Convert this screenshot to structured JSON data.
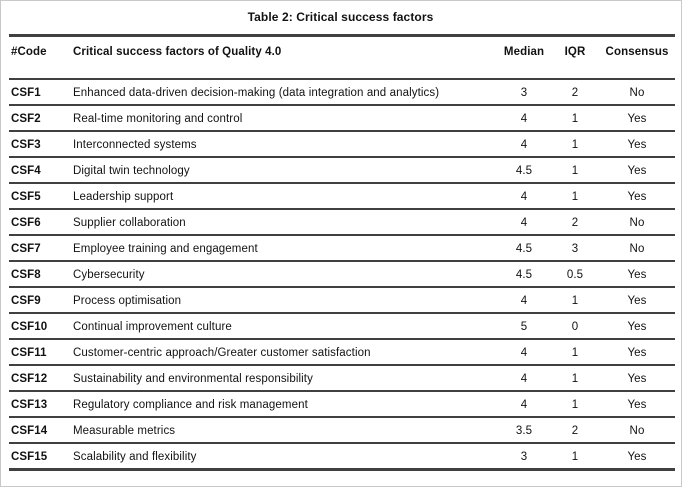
{
  "title": "Table 2: Critical success factors",
  "table": {
    "columns": [
      "#Code",
      "Critical success factors of Quality 4.0",
      "Median",
      "IQR",
      "Consensus"
    ],
    "rows": [
      {
        "code": "CSF1",
        "factor": "Enhanced data-driven decision-making (data integration and analytics)",
        "median": "3",
        "iqr": "2",
        "consensus": "No"
      },
      {
        "code": "CSF2",
        "factor": "Real-time monitoring and control",
        "median": "4",
        "iqr": "1",
        "consensus": "Yes"
      },
      {
        "code": "CSF3",
        "factor": "Interconnected systems",
        "median": "4",
        "iqr": "1",
        "consensus": "Yes"
      },
      {
        "code": "CSF4",
        "factor": "Digital twin technology",
        "median": "4.5",
        "iqr": "1",
        "consensus": "Yes"
      },
      {
        "code": "CSF5",
        "factor": "Leadership support",
        "median": "4",
        "iqr": "1",
        "consensus": "Yes"
      },
      {
        "code": "CSF6",
        "factor": "Supplier collaboration",
        "median": "4",
        "iqr": "2",
        "consensus": "No"
      },
      {
        "code": "CSF7",
        "factor": "Employee training and engagement",
        "median": "4.5",
        "iqr": "3",
        "consensus": "No"
      },
      {
        "code": "CSF8",
        "factor": "Cybersecurity",
        "median": "4.5",
        "iqr": "0.5",
        "consensus": "Yes"
      },
      {
        "code": "CSF9",
        "factor": "Process optimisation",
        "median": "4",
        "iqr": "1",
        "consensus": "Yes"
      },
      {
        "code": "CSF10",
        "factor": "Continual improvement culture",
        "median": "5",
        "iqr": "0",
        "consensus": "Yes"
      },
      {
        "code": "CSF11",
        "factor": "Customer-centric approach/Greater customer satisfaction",
        "median": "4",
        "iqr": "1",
        "consensus": "Yes"
      },
      {
        "code": "CSF12",
        "factor": "Sustainability and environmental responsibility",
        "median": "4",
        "iqr": "1",
        "consensus": "Yes"
      },
      {
        "code": "CSF13",
        "factor": "Regulatory compliance and risk management",
        "median": "4",
        "iqr": "1",
        "consensus": "Yes"
      },
      {
        "code": "CSF14",
        "factor": "Measurable metrics",
        "median": "3.5",
        "iqr": "2",
        "consensus": "No"
      },
      {
        "code": "CSF15",
        "factor": "Scalability and flexibility",
        "median": "3",
        "iqr": "1",
        "consensus": "Yes"
      }
    ]
  },
  "colors": {
    "rule": "#404040",
    "text": "#121212",
    "background": "#ffffff"
  }
}
